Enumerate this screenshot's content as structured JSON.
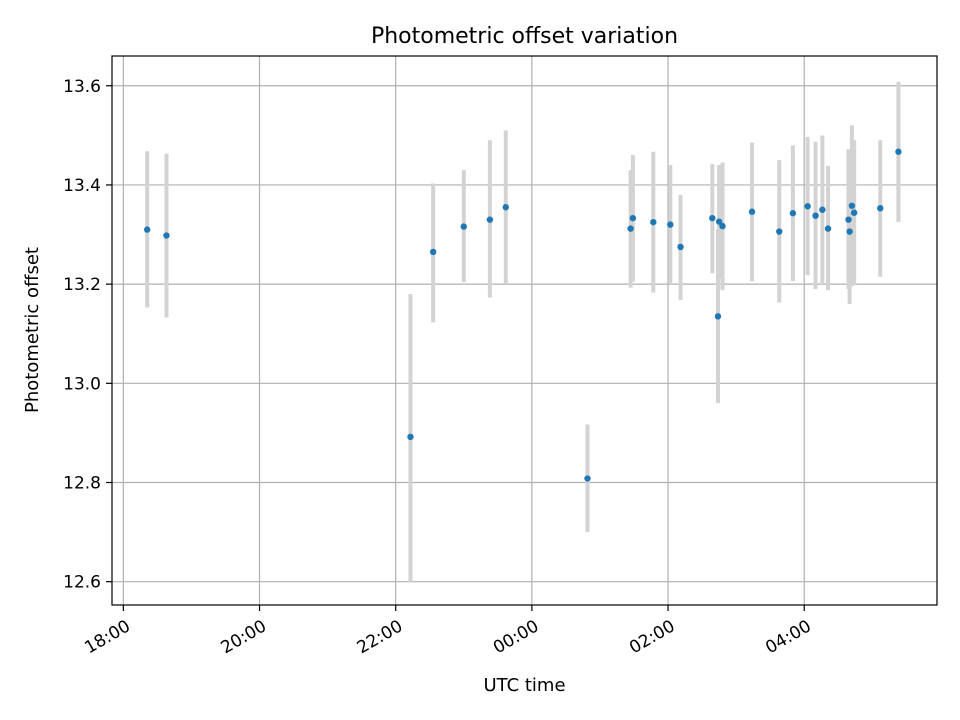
{
  "chart_data": {
    "type": "scatter",
    "title": "Photometric offset variation",
    "xlabel": "UTC time",
    "ylabel": "Photometric offset",
    "x_reference_date": "",
    "xlim": [
      "17:50",
      "05:57"
    ],
    "ylim": [
      12.553,
      13.66
    ],
    "x_ticks": [
      "18:00",
      "20:00",
      "22:00",
      "00:00",
      "02:00",
      "04:00"
    ],
    "y_ticks": [
      12.6,
      12.8,
      13.0,
      13.2,
      13.4,
      13.6
    ],
    "grid": true,
    "marker_color": "#1f77b4",
    "errorbar_color": "#d3d3d3",
    "points": [
      {
        "t": "18:21",
        "y": 13.31,
        "lo": 13.153,
        "hi": 13.468
      },
      {
        "t": "18:38",
        "y": 13.298,
        "lo": 13.133,
        "hi": 13.463
      },
      {
        "t": "22:13",
        "y": 12.892,
        "lo": 12.6,
        "hi": 13.18
      },
      {
        "t": "22:33",
        "y": 13.265,
        "lo": 13.123,
        "hi": 13.403
      },
      {
        "t": "23:00",
        "y": 13.316,
        "lo": 13.204,
        "hi": 13.43
      },
      {
        "t": "23:23",
        "y": 13.33,
        "lo": 13.173,
        "hi": 13.49
      },
      {
        "t": "23:37",
        "y": 13.355,
        "lo": 13.2,
        "hi": 13.51
      },
      {
        "t": "00:49",
        "y": 12.808,
        "lo": 12.7,
        "hi": 12.917
      },
      {
        "t": "01:27",
        "y": 13.312,
        "lo": 13.193,
        "hi": 13.43
      },
      {
        "t": "01:29",
        "y": 13.333,
        "lo": 13.205,
        "hi": 13.46
      },
      {
        "t": "01:47",
        "y": 13.325,
        "lo": 13.183,
        "hi": 13.467
      },
      {
        "t": "02:02",
        "y": 13.32,
        "lo": 13.2,
        "hi": 13.44
      },
      {
        "t": "02:11",
        "y": 13.275,
        "lo": 13.168,
        "hi": 13.38
      },
      {
        "t": "02:39",
        "y": 13.333,
        "lo": 13.222,
        "hi": 13.442
      },
      {
        "t": "02:44",
        "y": 13.135,
        "lo": 12.96,
        "hi": 13.31
      },
      {
        "t": "02:45",
        "y": 13.326,
        "lo": 13.21,
        "hi": 13.44
      },
      {
        "t": "02:48",
        "y": 13.317,
        "lo": 13.188,
        "hi": 13.445
      },
      {
        "t": "03:14",
        "y": 13.346,
        "lo": 13.206,
        "hi": 13.485
      },
      {
        "t": "03:38",
        "y": 13.306,
        "lo": 13.163,
        "hi": 13.45
      },
      {
        "t": "03:50",
        "y": 13.343,
        "lo": 13.206,
        "hi": 13.48
      },
      {
        "t": "04:03",
        "y": 13.357,
        "lo": 13.218,
        "hi": 13.497
      },
      {
        "t": "04:10",
        "y": 13.338,
        "lo": 13.19,
        "hi": 13.487
      },
      {
        "t": "04:16",
        "y": 13.35,
        "lo": 13.2,
        "hi": 13.5
      },
      {
        "t": "04:21",
        "y": 13.312,
        "lo": 13.188,
        "hi": 13.438
      },
      {
        "t": "04:39",
        "y": 13.33,
        "lo": 13.19,
        "hi": 13.472
      },
      {
        "t": "04:40",
        "y": 13.306,
        "lo": 13.16,
        "hi": 13.452
      },
      {
        "t": "04:42",
        "y": 13.358,
        "lo": 13.196,
        "hi": 13.52
      },
      {
        "t": "04:44",
        "y": 13.344,
        "lo": 13.198,
        "hi": 13.49
      },
      {
        "t": "05:07",
        "y": 13.353,
        "lo": 13.215,
        "hi": 13.49
      },
      {
        "t": "05:23",
        "y": 13.467,
        "lo": 13.325,
        "hi": 13.608
      }
    ]
  }
}
